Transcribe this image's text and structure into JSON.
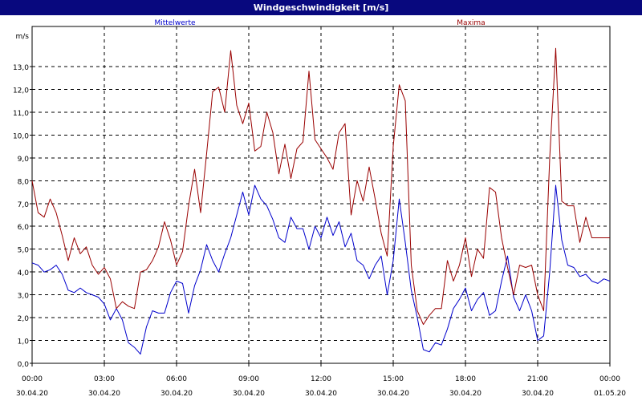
{
  "window": {
    "title": "Windgeschwindigkeit [m/s]"
  },
  "colors": {
    "titlebar": "#08087e",
    "series_mean": "#0000cc",
    "series_max": "#990000",
    "grid": "#000000"
  },
  "chart_data": {
    "type": "line",
    "title": "Windgeschwindigkeit [m/s]",
    "ylabel": "m/s",
    "xlabel": "",
    "ylim": [
      0,
      14.5
    ],
    "yticks": [
      0,
      1,
      2,
      3,
      4,
      5,
      6,
      7,
      8,
      9,
      10,
      11,
      12,
      13
    ],
    "ytick_labels": [
      "0,0",
      "1,0",
      "2,0",
      "3,0",
      "4,0",
      "5,0",
      "6,0",
      "7,0",
      "8,0",
      "9,0",
      "10,0",
      "11,0",
      "12,0",
      "13,0"
    ],
    "xlim_hours": [
      0,
      24
    ],
    "xticks": [
      {
        "h": 0,
        "time": "00:00",
        "date": "30.04.20"
      },
      {
        "h": 3,
        "time": "03:00",
        "date": "30.04.20"
      },
      {
        "h": 6,
        "time": "06:00",
        "date": "30.04.20"
      },
      {
        "h": 9,
        "time": "09:00",
        "date": "30.04.20"
      },
      {
        "h": 12,
        "time": "12:00",
        "date": "30.04.20"
      },
      {
        "h": 15,
        "time": "15:00",
        "date": "30.04.20"
      },
      {
        "h": 18,
        "time": "18:00",
        "date": "30.04.20"
      },
      {
        "h": 21,
        "time": "21:00",
        "date": "30.04.20"
      },
      {
        "h": 24,
        "time": "00:00",
        "date": "01.05.20"
      }
    ],
    "grid": true,
    "legend": [
      {
        "name": "Mittelwerte",
        "position": "top-left"
      },
      {
        "name": "Maxima",
        "position": "top-right"
      }
    ],
    "series": [
      {
        "name": "Mittelwerte",
        "color": "#0000cc",
        "x": [
          0,
          0.25,
          0.5,
          0.75,
          1,
          1.25,
          1.5,
          1.75,
          2,
          2.25,
          2.5,
          2.75,
          3,
          3.25,
          3.5,
          3.75,
          4,
          4.25,
          4.5,
          4.75,
          5,
          5.25,
          5.5,
          5.75,
          6,
          6.25,
          6.5,
          6.75,
          7,
          7.25,
          7.5,
          7.75,
          8,
          8.25,
          8.5,
          8.75,
          9,
          9.25,
          9.5,
          9.75,
          10,
          10.25,
          10.5,
          10.75,
          11,
          11.25,
          11.5,
          11.75,
          12,
          12.25,
          12.5,
          12.75,
          13,
          13.25,
          13.5,
          13.75,
          14,
          14.25,
          14.5,
          14.75,
          15,
          15.25,
          15.5,
          15.75,
          16,
          16.25,
          16.5,
          16.75,
          17,
          17.25,
          17.5,
          17.75,
          18,
          18.25,
          18.5,
          18.75,
          19,
          19.25,
          19.5,
          19.75,
          20,
          20.25,
          20.5,
          20.75,
          21,
          21.25,
          21.5,
          21.75,
          22,
          22.25,
          22.5,
          22.75,
          23,
          23.25,
          23.5,
          23.75,
          24
        ],
        "y": [
          4.4,
          4.3,
          4.0,
          4.1,
          4.3,
          3.9,
          3.2,
          3.1,
          3.3,
          3.1,
          3.0,
          2.9,
          2.6,
          1.9,
          2.4,
          1.9,
          0.9,
          0.7,
          0.4,
          1.6,
          2.3,
          2.2,
          2.2,
          3.1,
          3.6,
          3.5,
          2.2,
          3.4,
          4.1,
          5.2,
          4.5,
          4.0,
          4.8,
          5.5,
          6.5,
          7.5,
          6.5,
          7.8,
          7.2,
          6.9,
          6.3,
          5.5,
          5.3,
          6.4,
          5.9,
          5.9,
          5.0,
          6.0,
          5.5,
          6.4,
          5.6,
          6.2,
          5.1,
          5.7,
          4.5,
          4.3,
          3.7,
          4.3,
          4.7,
          3.0,
          4.5,
          7.2,
          5.3,
          3.2,
          2.0,
          0.6,
          0.5,
          0.9,
          0.8,
          1.5,
          2.4,
          2.8,
          3.3,
          2.3,
          2.8,
          3.1,
          2.1,
          2.3,
          3.6,
          4.7,
          2.9,
          2.3,
          3.0,
          2.3,
          1.0,
          1.2,
          4.0,
          7.8,
          5.4,
          4.3,
          4.2,
          3.8,
          3.9,
          3.6,
          3.5,
          3.7,
          3.6
        ],
        "note_end": 3.6
      },
      {
        "name": "Maxima",
        "color": "#990000",
        "x": [
          0,
          0.25,
          0.5,
          0.75,
          1,
          1.25,
          1.5,
          1.75,
          2,
          2.25,
          2.5,
          2.75,
          3,
          3.25,
          3.5,
          3.75,
          4,
          4.25,
          4.5,
          4.75,
          5,
          5.25,
          5.5,
          5.75,
          6,
          6.25,
          6.5,
          6.75,
          7,
          7.25,
          7.5,
          7.75,
          8,
          8.25,
          8.5,
          8.75,
          9,
          9.25,
          9.5,
          9.75,
          10,
          10.25,
          10.5,
          10.75,
          11,
          11.25,
          11.5,
          11.75,
          12,
          12.25,
          12.5,
          12.75,
          13,
          13.25,
          13.5,
          13.75,
          14,
          14.25,
          14.5,
          14.75,
          15,
          15.25,
          15.5,
          15.75,
          16,
          16.25,
          16.5,
          16.75,
          17,
          17.25,
          17.5,
          17.75,
          18,
          18.25,
          18.5,
          18.75,
          19,
          19.25,
          19.5,
          19.75,
          20,
          20.25,
          20.5,
          20.75,
          21,
          21.25,
          21.5,
          21.75,
          22,
          22.25,
          22.5,
          22.75,
          23,
          23.25,
          23.5,
          23.75,
          24
        ],
        "y": [
          8.0,
          6.6,
          6.4,
          7.2,
          6.6,
          5.6,
          4.5,
          5.5,
          4.8,
          5.1,
          4.3,
          3.9,
          4.2,
          3.7,
          2.4,
          2.7,
          2.5,
          2.4,
          4.0,
          4.1,
          4.5,
          5.1,
          6.2,
          5.4,
          4.3,
          4.9,
          6.9,
          8.5,
          6.6,
          9.2,
          11.9,
          12.1,
          11.0,
          13.7,
          11.3,
          10.5,
          11.4,
          9.3,
          9.5,
          11.0,
          10.1,
          8.3,
          9.6,
          8.1,
          9.4,
          9.7,
          12.8,
          9.8,
          9.4,
          9.0,
          8.5,
          10.1,
          10.5,
          6.5,
          8.0,
          7.1,
          8.6,
          7.2,
          5.7,
          4.7,
          9.5,
          12.2,
          11.5,
          4.3,
          2.3,
          1.7,
          2.1,
          2.4,
          2.4,
          4.5,
          3.6,
          4.3,
          5.5,
          3.8,
          5.0,
          4.6,
          7.7,
          7.5,
          5.5,
          4.2,
          3.0,
          4.3,
          4.2,
          4.3,
          3.0,
          2.3,
          9.0,
          13.8,
          7.1,
          6.9,
          6.9,
          5.3,
          6.4,
          5.5,
          5.5,
          5.5,
          5.5
        ],
        "note_end": 5.5
      }
    ]
  }
}
